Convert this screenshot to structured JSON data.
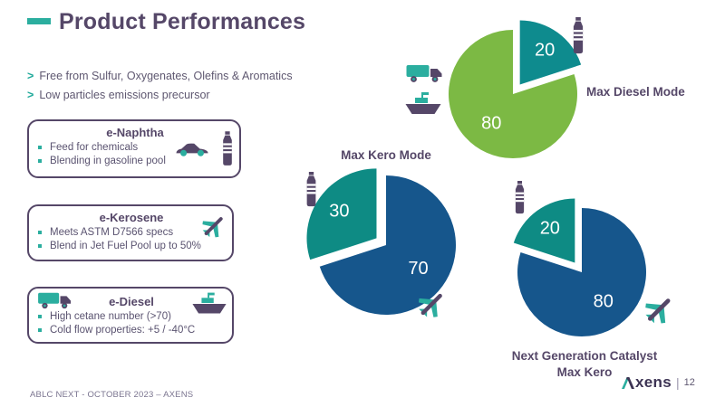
{
  "header": {
    "title": "Product Performances"
  },
  "intro_bullets": [
    {
      "marker": ">",
      "text": "Free from Sulfur, Oxygenates, Olefins & Aromatics"
    },
    {
      "marker": ">",
      "text": "Low particles emissions precursor"
    }
  ],
  "product_boxes": [
    {
      "title": "e-Naphtha",
      "bullets": [
        "Feed for chemicals",
        "Blending in gasoline pool"
      ],
      "icons": [
        "car-icon",
        "bottle-icon"
      ]
    },
    {
      "title": "e-Kerosene",
      "bullets": [
        "Meets ASTM D7566 specs",
        "Blend in Jet Fuel Pool up to 50%"
      ],
      "icons": [
        "plane-icon"
      ]
    },
    {
      "title": "e-Diesel",
      "bullets": [
        "High cetane number (>70)",
        "Cold flow properties: +5 / -40°C"
      ],
      "icons": [
        "truck-icon",
        "ship-icon"
      ]
    }
  ],
  "chart_data": [
    {
      "type": "pie",
      "title": "Max Diesel Mode",
      "slices": [
        {
          "label": "80",
          "value": 80,
          "color": "#7CB944"
        },
        {
          "label": "20",
          "value": 20,
          "color": "#0E8B8E",
          "exploded": true
        }
      ],
      "small_slice_sweep": "clockwise",
      "label_color": "#FFFFFF",
      "legend_position": "right",
      "icons": {
        "near_small_slice": "bottle-icon",
        "near_big_slice": [
          "truck-icon",
          "ship-icon"
        ]
      }
    },
    {
      "type": "pie",
      "title": "Max Kero Mode",
      "slices": [
        {
          "label": "70",
          "value": 70,
          "color": "#16568C"
        },
        {
          "label": "30",
          "value": 30,
          "color": "#0E8B84",
          "exploded": true
        }
      ],
      "small_slice_sweep": "counterclockwise",
      "label_color": "#FFFFFF",
      "legend_position": "top",
      "icons": {
        "near_small_slice": "bottle-icon",
        "near_big_slice": [
          "plane-icon"
        ]
      }
    },
    {
      "type": "pie",
      "title": "Next Generation Catalyst\nMax Kero",
      "slices": [
        {
          "label": "80",
          "value": 80,
          "color": "#16568C"
        },
        {
          "label": "20",
          "value": 20,
          "color": "#0E8B84",
          "exploded": true
        }
      ],
      "small_slice_sweep": "counterclockwise",
      "label_color": "#FFFFFF",
      "legend_position": "bottom",
      "icons": {
        "near_small_slice": "bottle-icon",
        "near_big_slice": [
          "plane-icon"
        ]
      }
    }
  ],
  "footer": {
    "left_text": "ABLC NEXT - OCTOBER 2023 – AXENS",
    "logo_initial": "A",
    "logo_rest": "xens",
    "divider": "|",
    "page_number": "12"
  },
  "colors": {
    "accent_teal": "#2BAE9F",
    "title_purple": "#554768",
    "pie_green": "#7CB944",
    "pie_teal": "#0E8B88",
    "pie_blue": "#16568C"
  }
}
